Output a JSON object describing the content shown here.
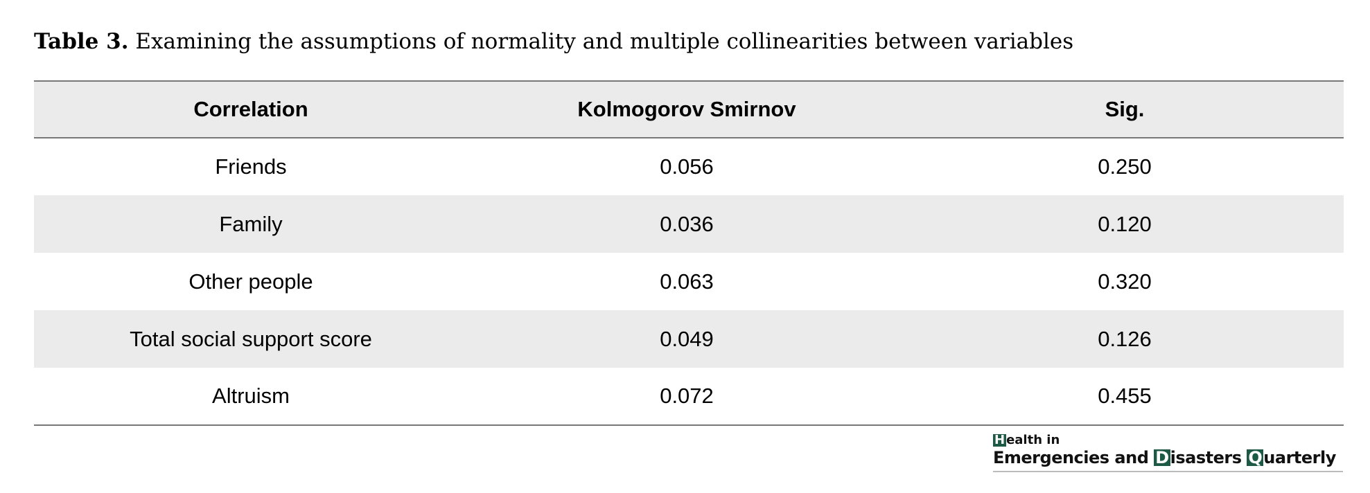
{
  "caption": {
    "label": "Table 3.",
    "text": " Examining the assumptions of normality and multiple collinearities between variables"
  },
  "table": {
    "headers": [
      "Correlation",
      "Kolmogorov Smirnov",
      "Sig."
    ],
    "rows": [
      [
        "Friends",
        "0.056",
        "0.250"
      ],
      [
        "Family",
        "0.036",
        "0.120"
      ],
      [
        "Other people",
        "0.063",
        "0.320"
      ],
      [
        "Total social support score",
        "0.049",
        "0.126"
      ],
      [
        "Altruism",
        "0.072",
        "0.455"
      ]
    ]
  },
  "logo": {
    "line1_initial": "H",
    "line1_rest": "ealth in",
    "line2_part1": "Emergencies and ",
    "line2_initial2": "D",
    "line2_part2": "isasters ",
    "line2_initial3": "Q",
    "line2_part3": "uarterly",
    "accent_color": "#1d5a45"
  }
}
